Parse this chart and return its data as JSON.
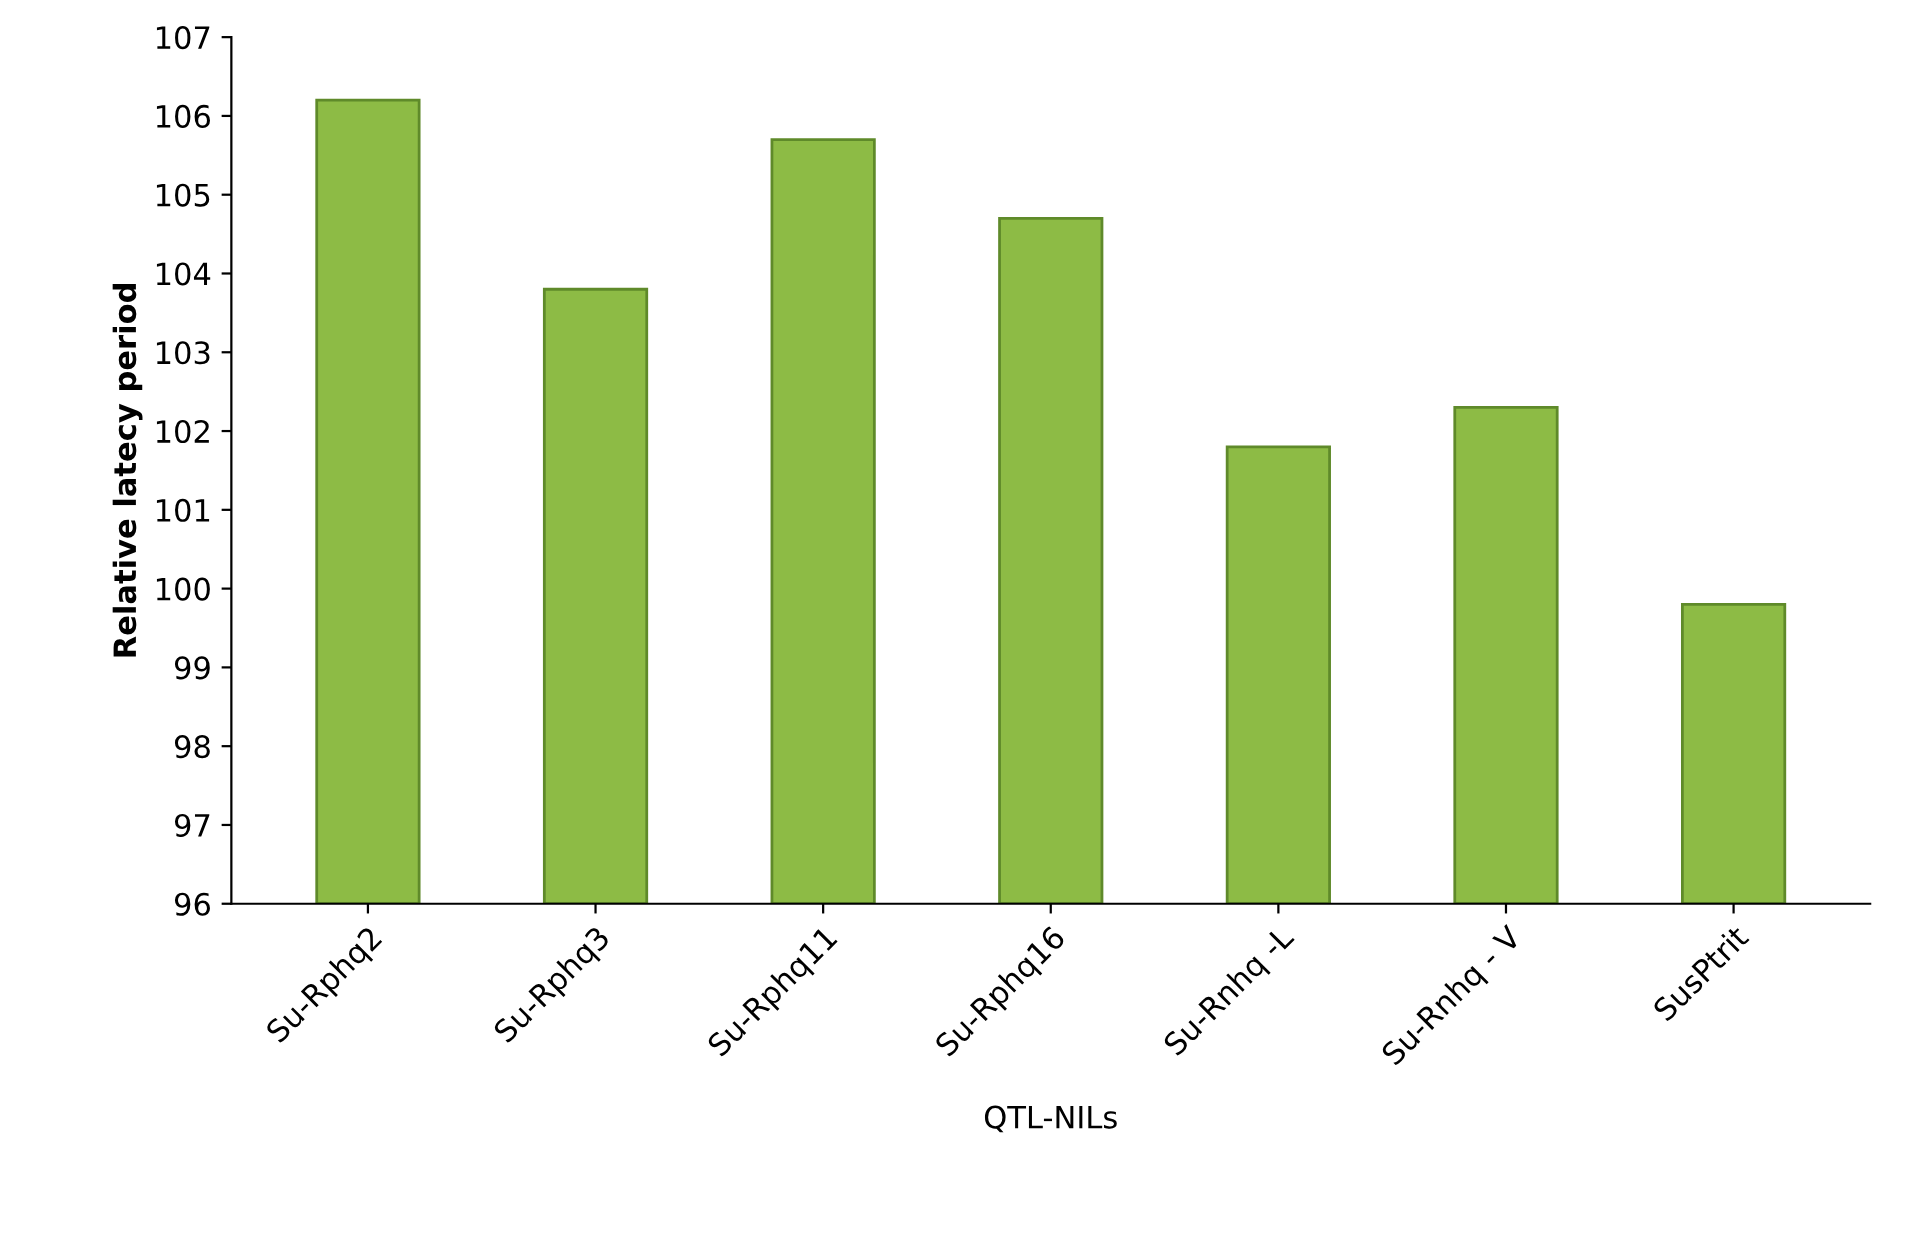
{
  "chart_data": {
    "type": "bar",
    "xlabel": "QTL-NILs",
    "ylabel": "Relative latecy period",
    "categories": [
      "Su-Rphq2",
      "Su-Rphq3",
      "Su-Rphq11",
      "Su-Rphq16",
      "Su-Rnhq -L",
      "Su-Rnhq - V",
      "SusPtrit"
    ],
    "values": [
      106.2,
      103.8,
      105.7,
      104.7,
      101.8,
      102.3,
      99.8
    ],
    "color": "#8dbb45",
    "ylim": [
      96,
      107
    ],
    "yticks": [
      96,
      97,
      98,
      99,
      100,
      101,
      102,
      103,
      104,
      105,
      106,
      107
    ],
    "grid": false
  }
}
